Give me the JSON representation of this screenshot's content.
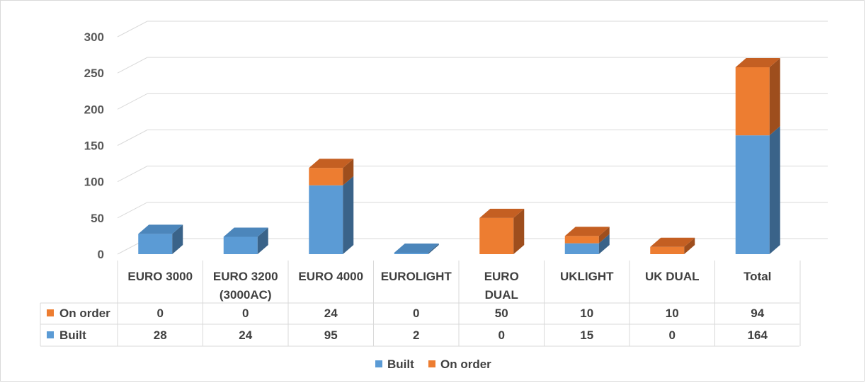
{
  "chart_data": {
    "type": "bar",
    "stacked": true,
    "three_d": true,
    "categories": [
      [
        "EURO 3000"
      ],
      [
        "EURO 3200",
        "(3000AC)"
      ],
      [
        "EURO 4000"
      ],
      [
        "EUROLIGHT"
      ],
      [
        "EURO",
        "DUAL"
      ],
      [
        "UKLIGHT"
      ],
      [
        "UK DUAL"
      ],
      [
        "Total"
      ]
    ],
    "series": [
      {
        "name": "Built",
        "color": "#5b9bd5",
        "side_color": "#3a6389",
        "top_color": "#4c86bb",
        "values": [
          28,
          24,
          95,
          2,
          0,
          15,
          0,
          164
        ]
      },
      {
        "name": "On order",
        "color": "#ed7d31",
        "side_color": "#9e4e1d",
        "top_color": "#c45f22",
        "values": [
          0,
          0,
          24,
          0,
          50,
          10,
          10,
          94
        ]
      }
    ],
    "ylim": [
      0,
      300
    ],
    "yticks": [
      0,
      50,
      100,
      150,
      200,
      250,
      300
    ],
    "gridlines": true,
    "legend_position": "bottom",
    "data_table": true
  }
}
